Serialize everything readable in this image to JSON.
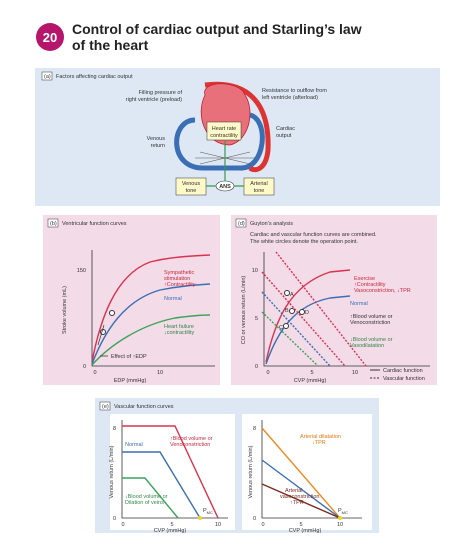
{
  "header": {
    "number": "20",
    "title": [
      "Control of cardiac output and Starling’s law",
      "of the heart"
    ]
  },
  "panel_a": {
    "tag": "(a)",
    "title": "Factors affecting cardiac output",
    "preload": [
      "Filling pressure of",
      "right ventricle (preload)"
    ],
    "afterload": [
      "Resistance to outflow from",
      "left ventricle (afterload)"
    ],
    "venous_return": [
      "Venous",
      "return"
    ],
    "cardiac_output": [
      "Cardiac",
      "output"
    ],
    "heart_rate": [
      "Heart rate",
      "contractility"
    ],
    "venous_tone": [
      "Venous",
      "tone"
    ],
    "ans": "ANS",
    "arterial_tone": [
      "Arterial",
      "tone"
    ]
  },
  "panel_b": {
    "tag": "(b)",
    "title": "Ventricular function curves",
    "yticks": [
      "150",
      "0"
    ],
    "xticks": [
      "0",
      "10"
    ],
    "ylabel": "Stroke volume (mL)",
    "xlabel": "EDP (mmHg)",
    "sympathetic": [
      "Sympathetic",
      "stimulation",
      "↑Contractility"
    ],
    "normal": "Normal",
    "failure": [
      "Heart failure",
      "↓contractility"
    ],
    "edp": "Effect of ↑EDP"
  },
  "panel_d": {
    "tag": "(d)",
    "title": "Guyton’s analysis",
    "note": [
      "Cardiac and vascular function curves are combined.",
      "The white circles denote the operation point."
    ],
    "yticks": [
      "10",
      "5",
      "0"
    ],
    "xticks": [
      "0",
      "5",
      "10"
    ],
    "ylabel": "CO or venous return (L/min)",
    "xlabel": "CVP (mmHg)",
    "exercise": [
      "Exercise",
      "↑Contractility",
      "Vasoconstriction, ↓TPR"
    ],
    "normal": "Normal",
    "up": [
      "↑Blood volume or",
      "Venoconstriction"
    ],
    "down": [
      "↓Blood volume or",
      "Vasodilatation"
    ],
    "points": [
      "A",
      "B",
      "C",
      "D"
    ],
    "legend": [
      "Cardiac function",
      "Vascular function"
    ]
  },
  "panel_e": {
    "tag": "(e)",
    "title": "Vascular function curves",
    "left": {
      "yticks": [
        "8",
        "0"
      ],
      "xticks": [
        "0",
        "5",
        "10"
      ],
      "ylabel": "Venous return (L/min)",
      "xlabel": "CVP (mmHg)",
      "up": [
        "↑Blood volume or",
        "Venoconstriction"
      ],
      "normal": "Normal",
      "down": [
        "↓Blood volume or",
        "Dilation of veins"
      ],
      "pmc": [
        "P",
        "MC"
      ]
    },
    "right": {
      "yticks": [
        "8",
        "0"
      ],
      "xticks": [
        "0",
        "5",
        "10"
      ],
      "ylabel": "Venous return (L/min)",
      "xlabel": "CVP (mmHg)",
      "dilation": [
        "Arterial dilatation",
        "↓TPR"
      ],
      "constriction": [
        "Arterial",
        "vasoconstriction",
        "↑TPR"
      ],
      "pmc": [
        "P",
        "MC"
      ]
    }
  }
}
